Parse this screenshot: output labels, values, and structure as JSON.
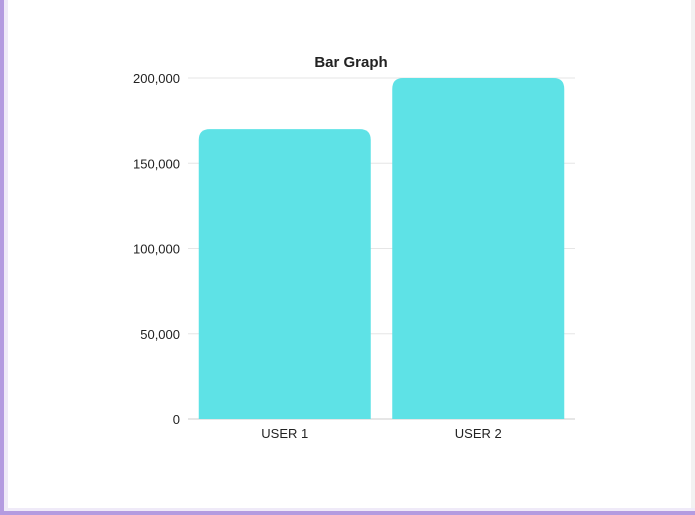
{
  "chart_data": {
    "type": "bar",
    "title": "Bar Graph",
    "xlabel": "",
    "ylabel": "",
    "categories": [
      "USER 1",
      "USER 2"
    ],
    "values": [
      170000,
      200000
    ],
    "ylim": [
      0,
      200000
    ],
    "yticks": [
      "0",
      "50,000",
      "100,000",
      "150,000",
      "200,000"
    ],
    "ytick_values": [
      0,
      50000,
      100000,
      150000,
      200000
    ],
    "grid": true,
    "legend": "none",
    "colors": {
      "bar": "#5ee2e6",
      "grid": "#e6e6e6",
      "axis": "#cccccc",
      "text": "#222222"
    }
  }
}
